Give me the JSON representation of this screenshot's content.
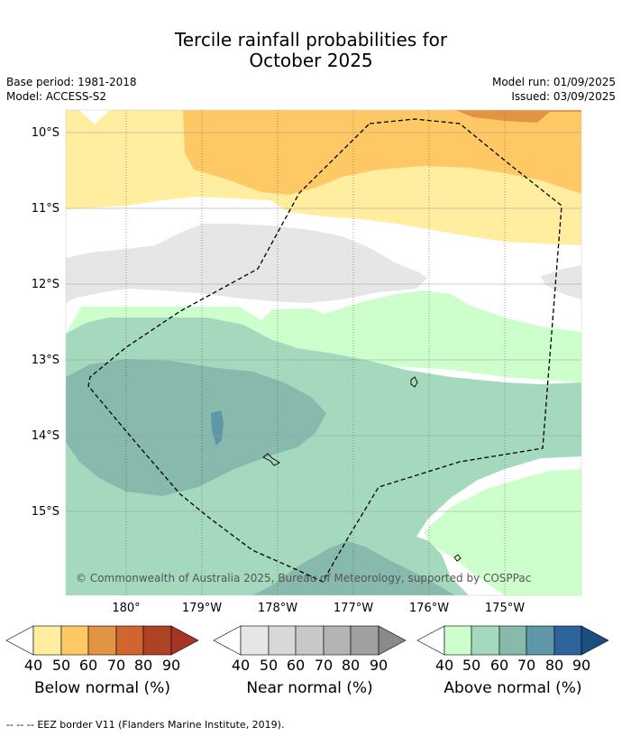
{
  "header": {
    "title_line1": "Tercile rainfall probabilities for",
    "title_line2": "October 2025",
    "base_period": "Base period: 1981-2018",
    "model": "Model: ACCESS-S2",
    "model_run": "Model run: 01/09/2025",
    "issued": "Issued: 03/09/2025"
  },
  "map": {
    "lat_labels": [
      "10°S",
      "11°S",
      "12°S",
      "13°S",
      "14°S",
      "15°S"
    ],
    "lon_labels": [
      "180°",
      "179°W",
      "178°W",
      "177°W",
      "176°W",
      "175°W"
    ],
    "copyright": "© Commonwealth of Australia 2025, Bureau of Meteorology, supported by COSPPac"
  },
  "colorbars": [
    {
      "name": "below",
      "label": "Below normal (%)",
      "ticks": [
        "40",
        "50",
        "60",
        "70",
        "80",
        "90"
      ],
      "colors": [
        "#ffffff",
        "#ffeda0",
        "#fec965",
        "#e19444",
        "#d1652f",
        "#ad4224",
        "#a63424"
      ]
    },
    {
      "name": "near",
      "label": "Near normal (%)",
      "ticks": [
        "40",
        "50",
        "60",
        "70",
        "80",
        "90"
      ],
      "colors": [
        "#ffffff",
        "#e6e6e6",
        "#d8d8d8",
        "#c8c8c8",
        "#b4b4b4",
        "#a0a0a0",
        "#8a8a8a"
      ]
    },
    {
      "name": "above",
      "label": "Above normal (%)",
      "ticks": [
        "40",
        "50",
        "60",
        "70",
        "80",
        "90"
      ],
      "colors": [
        "#ffffff",
        "#ccffcc",
        "#a4d9bd",
        "#87b9ad",
        "#5e97a7",
        "#2e649a",
        "#1b4f82"
      ]
    }
  ],
  "footer": {
    "legend_marker": "-- -- --",
    "legend_text": "EEZ border V11 (Flanders Marine Institute, 2019)."
  }
}
